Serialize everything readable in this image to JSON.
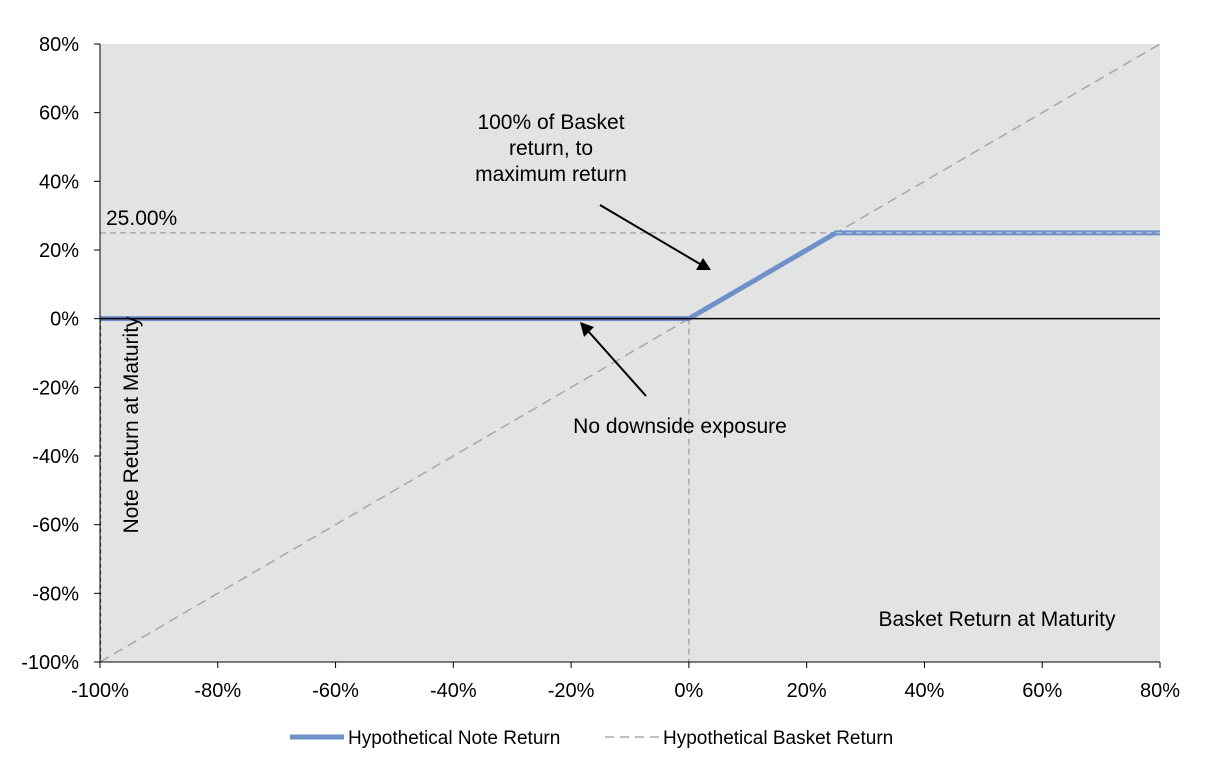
{
  "chart_data": {
    "type": "line",
    "x": [
      -100,
      -80,
      -60,
      -40,
      -20,
      0,
      20,
      25,
      40,
      60,
      80
    ],
    "series": [
      {
        "name": "Hypothetical Note Return",
        "values": [
          0,
          0,
          0,
          0,
          0,
          0,
          20,
          25,
          25,
          25,
          25
        ],
        "color": "#7090c8",
        "style": "solid"
      },
      {
        "name": "Hypothetical Basket Return",
        "values": [
          -100,
          -80,
          -60,
          -40,
          -20,
          0,
          20,
          25,
          40,
          60,
          80
        ],
        "color": "#aaaaaa",
        "style": "dashed"
      }
    ],
    "xlim": [
      -100,
      80
    ],
    "ylim": [
      -100,
      80
    ],
    "xticks": [
      -100,
      -80,
      -60,
      -40,
      -20,
      0,
      20,
      40,
      60,
      80
    ],
    "yticks": [
      -100,
      -80,
      -60,
      -40,
      -20,
      0,
      20,
      40,
      60,
      80
    ],
    "tick_suffix": "%",
    "xlabel": "Basket Return at Maturity",
    "ylabel": "Note Return at Maturity",
    "cap_value": 25,
    "cap_label": "25.00%",
    "annotations": [
      {
        "lines": [
          "100% of Basket",
          "return, to",
          "maximum  return"
        ]
      },
      {
        "lines": [
          "No downside  exposure"
        ]
      }
    ],
    "legend_position": "bottom",
    "grid": false,
    "plot_background": "#e2e3e3"
  }
}
